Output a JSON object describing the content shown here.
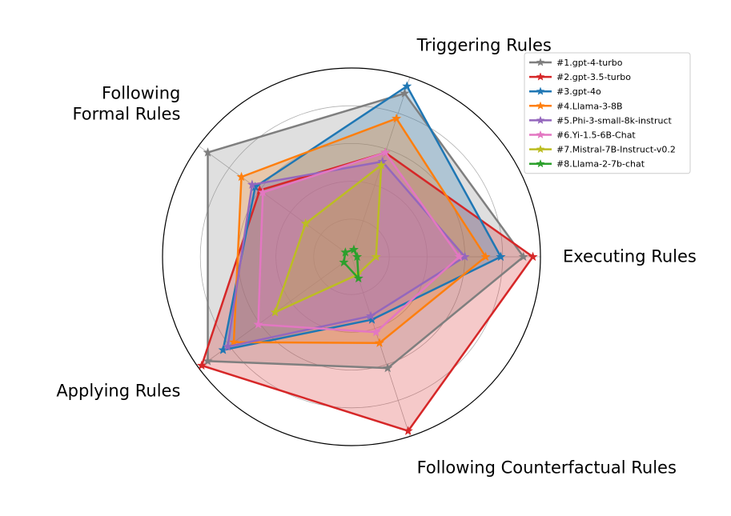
{
  "chart_data": {
    "type": "radar",
    "axes": [
      "Executing Rules",
      "Triggering Rules",
      "Following Formal Rules",
      "Applying Rules",
      "Following Counterfactual Rules"
    ],
    "axis_label_lines": [
      [
        "Executing Rules"
      ],
      [
        "Triggering Rules"
      ],
      [
        "Following",
        "Formal Rules"
      ],
      [
        "Applying Rules"
      ],
      [
        "Following Counterfactual Rules"
      ]
    ],
    "rmax": 1.0,
    "grid": true,
    "grid_levels": [
      0.2,
      0.4,
      0.6,
      0.8
    ],
    "legend_position": "top-right",
    "series": [
      {
        "name": "#1.gpt-4-turbo",
        "color": "#7f7f7f",
        "fill": true,
        "values": [
          0.91,
          0.91,
          0.94,
          0.94,
          0.62
        ]
      },
      {
        "name": "#2.gpt-3.5-turbo",
        "color": "#d62728",
        "fill": true,
        "values": [
          0.96,
          0.58,
          0.6,
          0.98,
          0.97
        ]
      },
      {
        "name": "#3.gpt-4o",
        "color": "#1f77b4",
        "fill": true,
        "values": [
          0.79,
          0.95,
          0.63,
          0.84,
          0.35
        ]
      },
      {
        "name": "#4.Llama-3-8B",
        "color": "#ff7f0e",
        "fill": true,
        "values": [
          0.71,
          0.77,
          0.72,
          0.77,
          0.48
        ]
      },
      {
        "name": "#5.Phi-3-small-8k-instruct",
        "color": "#9467bd",
        "fill": true,
        "values": [
          0.6,
          0.53,
          0.65,
          0.81,
          0.33
        ]
      },
      {
        "name": "#6.Yi-1.5-6B-Chat",
        "color": "#e377c2",
        "fill": true,
        "values": [
          0.57,
          0.58,
          0.58,
          0.61,
          0.42
        ]
      },
      {
        "name": "#7.Mistral-7B-Instruct-v0.2",
        "color": "#bcbd22",
        "fill": true,
        "values": [
          0.13,
          0.51,
          0.3,
          0.5,
          0.1
        ]
      },
      {
        "name": "#8.Llama-2-7b-chat",
        "color": "#2ca02c",
        "fill": false,
        "values": [
          0.03,
          0.04,
          0.04,
          0.05,
          0.12
        ]
      }
    ]
  }
}
